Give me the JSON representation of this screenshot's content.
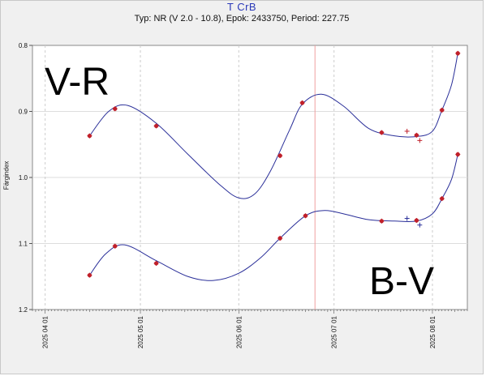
{
  "chart_data": {
    "type": "line",
    "title": "T CrB",
    "subtitle": "Typ: NR (V 2.0 - 10.8), Epok: 2433750, Period: 227.75",
    "ylabel": "Färgindex",
    "xlabel": "",
    "ylim": [
      0.8,
      1.2
    ],
    "y_inverted": true,
    "y_ticks": [
      "0.8",
      "0.9",
      "1.0",
      "1.1",
      "1.2"
    ],
    "x_range": [
      "2025-03-28",
      "2025-08-12"
    ],
    "x_ticks": [
      "2025 04 01",
      "2025 05 01",
      "2025 06 01",
      "2025 07 01",
      "2025 08 01"
    ],
    "vertical_marker": "2025-06-25",
    "grid": true,
    "annotations": [
      "V-R",
      "B-V"
    ],
    "series": [
      {
        "label": "V-R",
        "color": "#c0202a",
        "fit_color": "#2a2f99",
        "points": [
          [
            "2025-04-15",
            0.937
          ],
          [
            "2025-04-23",
            0.896
          ],
          [
            "2025-05-06",
            0.922
          ],
          [
            "2025-06-14",
            0.967
          ],
          [
            "2025-06-21",
            0.887
          ],
          [
            "2025-07-16",
            0.932
          ],
          [
            "2025-07-27",
            0.936
          ],
          [
            "2025-08-04",
            0.898
          ],
          [
            "2025-08-09",
            0.812
          ]
        ],
        "outliers": [
          [
            "2025-07-24",
            0.93
          ],
          [
            "2025-07-28",
            0.944
          ]
        ],
        "fit": [
          [
            "2025-04-15",
            0.937
          ],
          [
            "2025-04-21",
            0.9
          ],
          [
            "2025-04-27",
            0.891
          ],
          [
            "2025-05-06",
            0.918
          ],
          [
            "2025-05-16",
            0.965
          ],
          [
            "2025-05-26",
            1.011
          ],
          [
            "2025-06-01",
            1.031
          ],
          [
            "2025-06-06",
            1.025
          ],
          [
            "2025-06-11",
            0.99
          ],
          [
            "2025-06-17",
            0.928
          ],
          [
            "2025-06-21",
            0.889
          ],
          [
            "2025-06-27",
            0.874
          ],
          [
            "2025-07-04",
            0.892
          ],
          [
            "2025-07-12",
            0.926
          ],
          [
            "2025-07-20",
            0.937
          ],
          [
            "2025-07-27",
            0.938
          ],
          [
            "2025-08-01",
            0.93
          ],
          [
            "2025-08-04",
            0.898
          ],
          [
            "2025-08-07",
            0.86
          ],
          [
            "2025-08-09",
            0.812
          ]
        ]
      },
      {
        "label": "B-V",
        "color": "#c0202a",
        "fit_color": "#2a2f99",
        "points": [
          [
            "2025-04-15",
            1.148
          ],
          [
            "2025-04-23",
            1.104
          ],
          [
            "2025-05-06",
            1.13
          ],
          [
            "2025-06-14",
            1.092
          ],
          [
            "2025-06-22",
            1.058
          ],
          [
            "2025-07-16",
            1.066
          ],
          [
            "2025-07-27",
            1.065
          ],
          [
            "2025-08-04",
            1.032
          ],
          [
            "2025-08-09",
            0.965
          ]
        ],
        "outliers": [
          [
            "2025-07-24",
            1.062
          ],
          [
            "2025-07-28",
            1.072
          ]
        ],
        "fit": [
          [
            "2025-04-15",
            1.148
          ],
          [
            "2025-04-20",
            1.116
          ],
          [
            "2025-04-26",
            1.102
          ],
          [
            "2025-05-06",
            1.126
          ],
          [
            "2025-05-16",
            1.15
          ],
          [
            "2025-05-24",
            1.156
          ],
          [
            "2025-06-01",
            1.145
          ],
          [
            "2025-06-08",
            1.121
          ],
          [
            "2025-06-14",
            1.092
          ],
          [
            "2025-06-22",
            1.058
          ],
          [
            "2025-06-28",
            1.05
          ],
          [
            "2025-07-04",
            1.055
          ],
          [
            "2025-07-12",
            1.064
          ],
          [
            "2025-07-20",
            1.066
          ],
          [
            "2025-07-27",
            1.066
          ],
          [
            "2025-08-01",
            1.055
          ],
          [
            "2025-08-04",
            1.032
          ],
          [
            "2025-08-07",
            1.003
          ],
          [
            "2025-08-09",
            0.965
          ]
        ]
      }
    ]
  }
}
